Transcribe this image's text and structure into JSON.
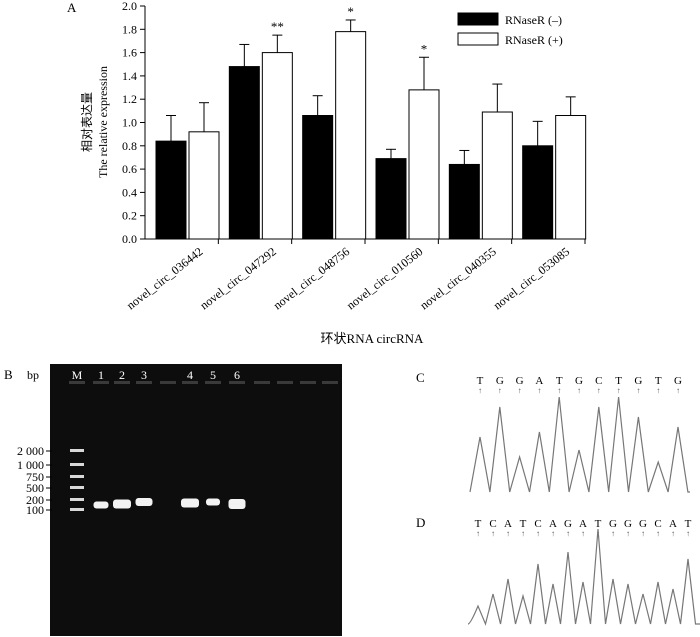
{
  "panel_labels": {
    "a": "A",
    "b": "B",
    "c": "C",
    "d": "D"
  },
  "chart_data": [
    {
      "type": "bar",
      "ylabel_cn": "相对表达量",
      "ylabel": "The relative expression",
      "xlabel": "环状RNA  circRNA",
      "ylim": [
        0,
        2.0
      ],
      "yticks": [
        "0.0",
        "0.2",
        "0.4",
        "0.6",
        "0.8",
        "1.0",
        "1.2",
        "1.4",
        "1.6",
        "1.8",
        "2.0"
      ],
      "categories": [
        "novel_circ_036442",
        "novel_circ_047292",
        "novel_circ_048756",
        "novel_circ_010560",
        "novel_circ_040355",
        "novel_circ_053085"
      ],
      "series": [
        {
          "name": "RNaseR (–)",
          "values": [
            0.84,
            1.48,
            1.06,
            0.69,
            0.64,
            0.8
          ],
          "errors": [
            0.22,
            0.19,
            0.17,
            0.08,
            0.12,
            0.21
          ],
          "color": "#000000"
        },
        {
          "name": "RNaseR (+)",
          "values": [
            0.92,
            1.6,
            1.78,
            1.28,
            1.09,
            1.06
          ],
          "errors": [
            0.25,
            0.15,
            0.1,
            0.28,
            0.24,
            0.16
          ],
          "color": "#ffffff"
        }
      ],
      "significance": [
        "",
        "**",
        "*",
        "*",
        "",
        ""
      ],
      "legend_position": "top-right"
    }
  ],
  "gel": {
    "unit_label": "bp",
    "lane_labels": [
      "M",
      "1",
      "2",
      "3",
      "4",
      "5",
      "6"
    ],
    "ladder_labels": [
      "2 000",
      "1 000",
      "750",
      "500",
      "200",
      "100"
    ]
  },
  "sequence_c": [
    "T",
    "G",
    "G",
    "A",
    "T",
    "G",
    "C",
    "T",
    "G",
    "T",
    "G"
  ],
  "sequence_d": [
    "T",
    "C",
    "A",
    "T",
    "C",
    "A",
    "G",
    "A",
    "T",
    "G",
    "G",
    "G",
    "C",
    "A",
    "T"
  ]
}
